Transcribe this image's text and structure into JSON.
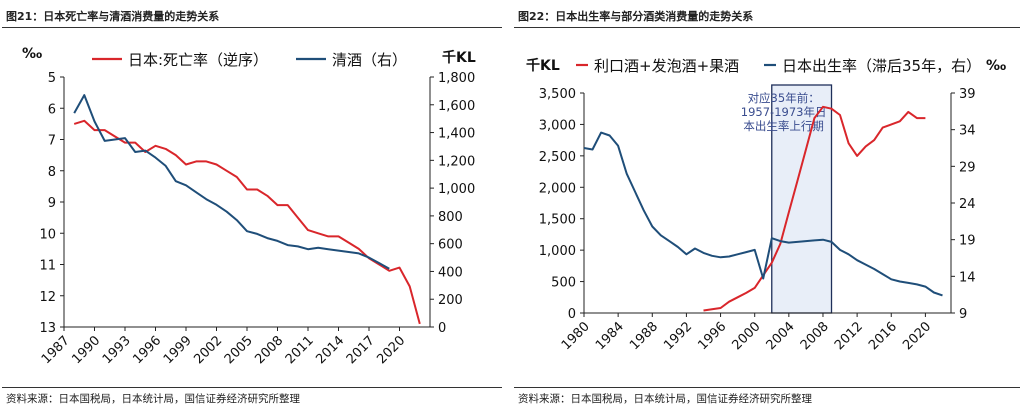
{
  "charts": [
    {
      "figure_title": "图21：日本死亡率与清酒消费量的走势关系",
      "source": "资料来源：日本国税局，日本统计局，国信证券经济研究所整理"
    },
    {
      "figure_title": "图22：日本出生率与部分酒类消费量的走势关系",
      "source": "资料来源：日本国税局，日本统计局，国信证券经济研究所整理"
    }
  ],
  "chart_data": [
    {
      "type": "line",
      "title": "图21：日本死亡率与清酒消费量的走势关系",
      "x_ticks": [
        "1987",
        "1990",
        "1993",
        "1996",
        "1999",
        "2002",
        "2005",
        "2008",
        "2011",
        "2014",
        "2017",
        "2020"
      ],
      "xlim": [
        1987,
        2023
      ],
      "left_axis": {
        "unit": "‰",
        "range": [
          5,
          13
        ],
        "inverted": true,
        "ticks": [
          "5",
          "6",
          "7",
          "8",
          "9",
          "10",
          "11",
          "12",
          "13"
        ]
      },
      "right_axis": {
        "unit": "千KL",
        "range": [
          0,
          1800
        ],
        "ticks": [
          "0",
          "200",
          "400",
          "600",
          "800",
          "1,000",
          "1,200",
          "1,400",
          "1,600",
          "1,800"
        ]
      },
      "legend_position": "top",
      "grid": false,
      "series": [
        {
          "name": "日本:死亡率（逆序）",
          "axis": "left",
          "color": "#d9262b",
          "x": [
            1988,
            1989,
            1990,
            1991,
            1992,
            1993,
            1994,
            1995,
            1996,
            1997,
            1998,
            1999,
            2000,
            2001,
            2002,
            2003,
            2004,
            2005,
            2006,
            2007,
            2008,
            2009,
            2010,
            2011,
            2012,
            2013,
            2014,
            2015,
            2016,
            2017,
            2018,
            2019,
            2020,
            2021,
            2022
          ],
          "y": [
            6.5,
            6.4,
            6.7,
            6.7,
            6.9,
            7.1,
            7.1,
            7.4,
            7.2,
            7.3,
            7.5,
            7.8,
            7.7,
            7.7,
            7.8,
            8.0,
            8.2,
            8.6,
            8.6,
            8.8,
            9.1,
            9.1,
            9.5,
            9.9,
            10.0,
            10.1,
            10.1,
            10.3,
            10.5,
            10.8,
            11.0,
            11.2,
            11.1,
            11.7,
            12.9
          ]
        },
        {
          "name": "清酒（右）",
          "axis": "right",
          "color": "#1f4e79",
          "x": [
            1988,
            1989,
            1990,
            1991,
            1992,
            1993,
            1994,
            1995,
            1996,
            1997,
            1998,
            1999,
            2000,
            2001,
            2002,
            2003,
            2004,
            2005,
            2006,
            2007,
            2008,
            2009,
            2010,
            2011,
            2012,
            2013,
            2014,
            2015,
            2016,
            2017,
            2018,
            2019
          ],
          "y": [
            1540,
            1670,
            1480,
            1340,
            1350,
            1360,
            1260,
            1270,
            1220,
            1160,
            1050,
            1020,
            970,
            920,
            880,
            830,
            770,
            690,
            670,
            640,
            620,
            590,
            580,
            560,
            570,
            560,
            550,
            540,
            530,
            500,
            460,
            420
          ]
        }
      ]
    },
    {
      "type": "line",
      "title": "图22：日本出生率与部分酒类消费量的走势关系",
      "x_ticks": [
        "1980",
        "1984",
        "1988",
        "1992",
        "1996",
        "2000",
        "2004",
        "2008",
        "2012",
        "2016",
        "2020"
      ],
      "xlim": [
        1980,
        2023
      ],
      "left_axis": {
        "unit": "千KL",
        "range": [
          0,
          3500
        ],
        "ticks": [
          "0",
          "500",
          "1,000",
          "1,500",
          "2,000",
          "2,500",
          "3,000",
          "3,500"
        ]
      },
      "right_axis": {
        "unit": "‰",
        "range": [
          9,
          39
        ],
        "ticks": [
          "9",
          "14",
          "19",
          "24",
          "29",
          "34",
          "39"
        ]
      },
      "legend_position": "top",
      "grid": false,
      "annotation": {
        "text": [
          "对应35年前：",
          "1957-1973年日",
          "本出生率上行期"
        ],
        "x_range": [
          2002,
          2009
        ]
      },
      "series": [
        {
          "name": "利口酒+发泡酒+果酒",
          "axis": "left",
          "color": "#d9262b",
          "x": [
            1994,
            1995,
            1996,
            1997,
            1998,
            1999,
            2000,
            2001,
            2002,
            2003,
            2004,
            2005,
            2006,
            2007,
            2008,
            2009,
            2010,
            2011,
            2012,
            2013,
            2014,
            2015,
            2016,
            2017,
            2018,
            2019,
            2020
          ],
          "y": [
            40,
            60,
            80,
            180,
            250,
            320,
            400,
            600,
            800,
            1100,
            1600,
            2100,
            2600,
            3100,
            3280,
            3250,
            3150,
            2700,
            2500,
            2650,
            2750,
            2950,
            3000,
            3050,
            3200,
            3100,
            3100
          ]
        },
        {
          "name": "日本出生率（滞后35年，右）",
          "axis": "right",
          "color": "#1f4e79",
          "x": [
            1980,
            1981,
            1982,
            1983,
            1984,
            1985,
            1986,
            1987,
            1988,
            1989,
            1990,
            1991,
            1992,
            1993,
            1994,
            1995,
            1996,
            1997,
            1998,
            1999,
            2000,
            2001,
            2002,
            2003,
            2004,
            2005,
            2006,
            2007,
            2008,
            2009,
            2010,
            2011,
            2012,
            2013,
            2014,
            2015,
            2016,
            2017,
            2018,
            2019,
            2020,
            2021,
            2022
          ],
          "y": [
            31.5,
            31.3,
            33.6,
            33.2,
            31.8,
            28.0,
            25.5,
            23.0,
            20.8,
            19.6,
            18.8,
            18.0,
            17.0,
            17.8,
            17.2,
            16.8,
            16.6,
            16.7,
            17.0,
            17.3,
            17.6,
            13.7,
            19.2,
            18.8,
            18.6,
            18.7,
            18.8,
            18.9,
            19.0,
            18.7,
            17.6,
            17.0,
            16.2,
            15.6,
            15.0,
            14.3,
            13.6,
            13.3,
            13.1,
            12.9,
            12.6,
            11.8,
            11.4
          ]
        }
      ]
    }
  ]
}
